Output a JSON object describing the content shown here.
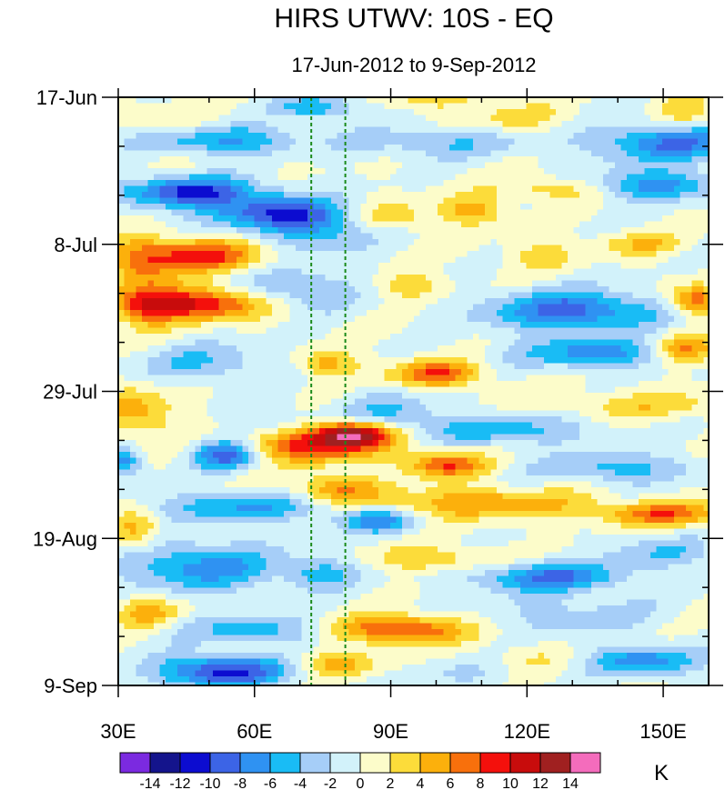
{
  "chart_data": {
    "type": "heatmap",
    "title": "HIRS UTWV: 10S - EQ",
    "subtitle": "17-Jun-2012 to 9-Sep-2012",
    "x_axis": {
      "range": [
        30,
        160
      ],
      "ticks": [
        30,
        60,
        90,
        120,
        150
      ],
      "tick_labels": [
        "30E",
        "60E",
        "90E",
        "120E",
        "150E"
      ],
      "minor_step": 10
    },
    "y_axis": {
      "range_days": [
        0,
        84
      ],
      "ticks": [
        0,
        21,
        42,
        63,
        84
      ],
      "tick_labels": [
        "17-Jun",
        "8-Jul",
        "29-Jul",
        "19-Aug",
        "9-Sep"
      ],
      "minor_step_days": 7,
      "direction": "top-to-bottom"
    },
    "reference_lines": [
      {
        "x": 72.5,
        "color": "#1a8a1a",
        "style": "dashed"
      },
      {
        "x": 80,
        "color": "#1a8a1a",
        "style": "dashed"
      }
    ],
    "colorbar": {
      "unit": "K",
      "boundaries": [
        -14,
        -12,
        -10,
        -8,
        -6,
        -4,
        -2,
        0,
        2,
        4,
        6,
        8,
        10,
        12,
        14
      ],
      "labels": [
        "-14",
        "-12",
        "-10",
        "-8",
        "-6",
        "-4",
        "-2",
        "0",
        "2",
        "4",
        "6",
        "8",
        "10",
        "12",
        "14"
      ],
      "colors": [
        "#7b2ae0",
        "#14148c",
        "#0c0cd0",
        "#3c64e6",
        "#2f92f2",
        "#19bcf5",
        "#a6cef8",
        "#d2f2fa",
        "#fcfcca",
        "#fcdc3a",
        "#fcb00c",
        "#f8700c",
        "#f4100c",
        "#c80c0c",
        "#a02020",
        "#f46cbc"
      ]
    },
    "anomaly_features": [
      {
        "lon": 44,
        "day": 4,
        "value": 3,
        "sx": 6,
        "sy": 1.5
      },
      {
        "lon": 74,
        "day": 1.5,
        "value": -6,
        "sx": 6,
        "sy": 1.2
      },
      {
        "lon": 52,
        "day": 6,
        "value": -7,
        "sx": 11,
        "sy": 1.5
      },
      {
        "lon": 152,
        "day": 6.5,
        "value": -8,
        "sx": 12,
        "sy": 2
      },
      {
        "lon": 100,
        "day": 6.5,
        "value": -4,
        "sx": 14,
        "sy": 1.5
      },
      {
        "lon": 118,
        "day": 3,
        "value": 3,
        "sx": 8,
        "sy": 1.3
      },
      {
        "lon": 100,
        "day": 0.5,
        "value": 3,
        "sx": 8,
        "sy": 0.8
      },
      {
        "lon": 155,
        "day": 2,
        "value": 4,
        "sx": 4,
        "sy": 2
      },
      {
        "lon": 46,
        "day": 13.5,
        "value": -10,
        "sx": 11,
        "sy": 1.5
      },
      {
        "lon": 62,
        "day": 16.5,
        "value": -8,
        "sx": 10,
        "sy": 1.6
      },
      {
        "lon": 74,
        "day": 18.5,
        "value": -6,
        "sx": 8,
        "sy": 2.5
      },
      {
        "lon": 90,
        "day": 17,
        "value": 4,
        "sx": 6,
        "sy": 1.5
      },
      {
        "lon": 108,
        "day": 16,
        "value": 5,
        "sx": 5,
        "sy": 1.5
      },
      {
        "lon": 126,
        "day": 13,
        "value": 4,
        "sx": 8,
        "sy": 1.2
      },
      {
        "lon": 148,
        "day": 12.5,
        "value": -7,
        "sx": 10,
        "sy": 1.5
      },
      {
        "lon": 145,
        "day": 21,
        "value": 4,
        "sx": 6,
        "sy": 1.2
      },
      {
        "lon": 123,
        "day": 22.5,
        "value": 3,
        "sx": 6,
        "sy": 1.5
      },
      {
        "lon": 48,
        "day": 22.5,
        "value": 9,
        "sx": 9,
        "sy": 1.6
      },
      {
        "lon": 35,
        "day": 24,
        "value": 6,
        "sx": 5,
        "sy": 2.5
      },
      {
        "lon": 48,
        "day": 29.5,
        "value": 10,
        "sx": 10,
        "sy": 1.6
      },
      {
        "lon": 36,
        "day": 30,
        "value": 6,
        "sx": 5,
        "sy": 2
      },
      {
        "lon": 70,
        "day": 27.5,
        "value": -5,
        "sx": 8,
        "sy": 2
      },
      {
        "lon": 95,
        "day": 27,
        "value": 4,
        "sx": 5,
        "sy": 1.2
      },
      {
        "lon": 130,
        "day": 30.5,
        "value": -9,
        "sx": 13,
        "sy": 2
      },
      {
        "lon": 157,
        "day": 29,
        "value": 8,
        "sx": 4,
        "sy": 1.5
      },
      {
        "lon": 155,
        "day": 36,
        "value": 7,
        "sx": 5,
        "sy": 1.5
      },
      {
        "lon": 135,
        "day": 36.5,
        "value": -7,
        "sx": 12,
        "sy": 1.5
      },
      {
        "lon": 100,
        "day": 39.5,
        "value": 8,
        "sx": 7,
        "sy": 1.3
      },
      {
        "lon": 76,
        "day": 38,
        "value": 5,
        "sx": 5,
        "sy": 1.3
      },
      {
        "lon": 50,
        "day": 38,
        "value": -4,
        "sx": 11,
        "sy": 2
      },
      {
        "lon": 34,
        "day": 45,
        "value": 5,
        "sx": 6,
        "sy": 2.5
      },
      {
        "lon": 65,
        "day": 47,
        "value": -3,
        "sx": 8,
        "sy": 2
      },
      {
        "lon": 90,
        "day": 45,
        "value": -4,
        "sx": 8,
        "sy": 2
      },
      {
        "lon": 145,
        "day": 44,
        "value": 3,
        "sx": 18,
        "sy": 1.5
      },
      {
        "lon": 115,
        "day": 47.5,
        "value": -5,
        "sx": 14,
        "sy": 1.6
      },
      {
        "lon": 73,
        "day": 49.5,
        "value": 10,
        "sx": 11,
        "sy": 1.8
      },
      {
        "lon": 82,
        "day": 48,
        "value": 11,
        "sx": 6,
        "sy": 1.2
      },
      {
        "lon": 54,
        "day": 51,
        "value": -10,
        "sx": 5,
        "sy": 1.5
      },
      {
        "lon": 31,
        "day": 52,
        "value": -7,
        "sx": 3,
        "sy": 1.3
      },
      {
        "lon": 102,
        "day": 52.5,
        "value": 8,
        "sx": 6,
        "sy": 1.3
      },
      {
        "lon": 140,
        "day": 53,
        "value": -5,
        "sx": 12,
        "sy": 1.5
      },
      {
        "lon": 78,
        "day": 56,
        "value": 6,
        "sx": 7,
        "sy": 1.5
      },
      {
        "lon": 110,
        "day": 58,
        "value": 6,
        "sx": 16,
        "sy": 1.5
      },
      {
        "lon": 58,
        "day": 58.5,
        "value": -6,
        "sx": 14,
        "sy": 1.5
      },
      {
        "lon": 87,
        "day": 60.5,
        "value": -7,
        "sx": 6,
        "sy": 1.2
      },
      {
        "lon": 150,
        "day": 59.5,
        "value": 7,
        "sx": 10,
        "sy": 1.2
      },
      {
        "lon": 34,
        "day": 62,
        "value": 5,
        "sx": 4,
        "sy": 2
      },
      {
        "lon": 48,
        "day": 67,
        "value": -7,
        "sx": 12,
        "sy": 2.5
      },
      {
        "lon": 125,
        "day": 68.5,
        "value": -8,
        "sx": 12,
        "sy": 1.5
      },
      {
        "lon": 100,
        "day": 66,
        "value": 4,
        "sx": 10,
        "sy": 1.3
      },
      {
        "lon": 75,
        "day": 68,
        "value": -5,
        "sx": 6,
        "sy": 1.5
      },
      {
        "lon": 150,
        "day": 65,
        "value": -4,
        "sx": 8,
        "sy": 1.5
      },
      {
        "lon": 36,
        "day": 73.5,
        "value": 5,
        "sx": 5,
        "sy": 1.5
      },
      {
        "lon": 92,
        "day": 76,
        "value": 9,
        "sx": 10,
        "sy": 1.4
      },
      {
        "lon": 60,
        "day": 76,
        "value": -5,
        "sx": 11,
        "sy": 1.5
      },
      {
        "lon": 130,
        "day": 74,
        "value": -3,
        "sx": 14,
        "sy": 2
      },
      {
        "lon": 53,
        "day": 82,
        "value": -11,
        "sx": 10,
        "sy": 1.6
      },
      {
        "lon": 78,
        "day": 81,
        "value": 5,
        "sx": 6,
        "sy": 1.3
      },
      {
        "lon": 146,
        "day": 80.5,
        "value": -7,
        "sx": 9,
        "sy": 1.5
      },
      {
        "lon": 106,
        "day": 82.5,
        "value": -2,
        "sx": 8,
        "sy": 1.5
      },
      {
        "lon": 120,
        "day": 80,
        "value": 2,
        "sx": 6,
        "sy": 1.5
      }
    ]
  }
}
